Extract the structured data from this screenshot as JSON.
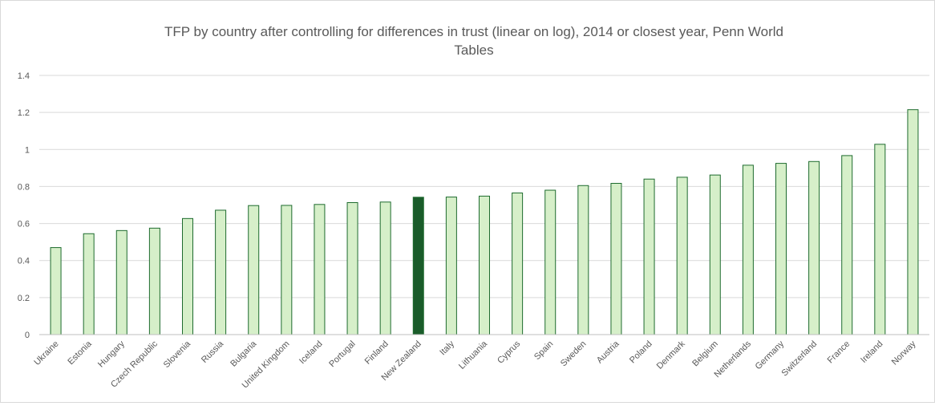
{
  "chart_data": {
    "type": "bar",
    "title_line1": "TFP by country after controlling for differences in trust (linear on log), 2014 or closest year, Penn World",
    "title_line2": "Tables",
    "categories": [
      "Ukraine",
      "Estonia",
      "Hungary",
      "Czech Republic",
      "Slovenia",
      "Russia",
      "Bulgaria",
      "United Kingdom",
      "Iceland",
      "Portugal",
      "Finland",
      "New Zealand",
      "Italy",
      "Lithuania",
      "Cyprus",
      "Spain",
      "Sweden",
      "Austria",
      "Poland",
      "Denmark",
      "Belgium",
      "Netherlands",
      "Germany",
      "Switzerland",
      "France",
      "Ireland",
      "Norway"
    ],
    "values": [
      0.47,
      0.545,
      0.562,
      0.575,
      0.627,
      0.672,
      0.697,
      0.698,
      0.703,
      0.713,
      0.716,
      0.742,
      0.743,
      0.748,
      0.765,
      0.78,
      0.805,
      0.817,
      0.84,
      0.85,
      0.862,
      0.915,
      0.925,
      0.935,
      0.967,
      1.028,
      1.215
    ],
    "highlight": "New Zealand",
    "ylim": [
      0,
      1.4
    ],
    "yticks": [
      0,
      0.2,
      0.4,
      0.6,
      0.8,
      1,
      1.2,
      1.4
    ],
    "ytick_labels": [
      "0",
      "0.2",
      "0.4",
      "0.6",
      "0.8",
      "1",
      "1.2",
      "1.4"
    ],
    "grid": true,
    "colors": {
      "bar_fill": "#d6efc9",
      "bar_stroke": "#1e6b2e",
      "highlight_fill": "#1a5c2a"
    }
  }
}
